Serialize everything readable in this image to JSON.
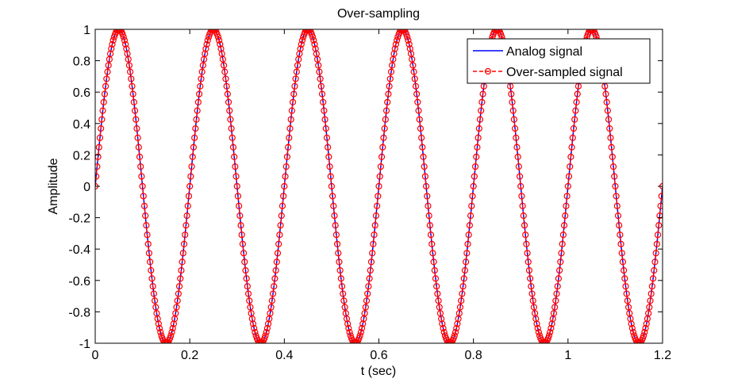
{
  "chart_data": {
    "type": "line",
    "title": "Over-sampling",
    "xlabel": "t (sec)",
    "ylabel": "Amplitude",
    "xlim": [
      0,
      1.2
    ],
    "ylim": [
      -1,
      1
    ],
    "x_ticks": [
      "0",
      "0.2",
      "0.4",
      "0.6",
      "0.8",
      "1",
      "1.2"
    ],
    "y_ticks": [
      "1",
      "0.8",
      "0.6",
      "0.4",
      "0.2",
      "0",
      "-0.2",
      "-0.4",
      "-0.6",
      "-0.8",
      "-1"
    ],
    "grid": false,
    "legend_position": "top-right",
    "series": [
      {
        "name": "Analog signal",
        "color": "#0000ff",
        "style": "solid line",
        "function": "sin(2*pi*5*t)",
        "frequency_hz": 5,
        "amplitude": 1,
        "t_start": 0,
        "t_end": 1.2
      },
      {
        "name": "Over-sampled signal",
        "color": "#ff0000",
        "style": "dashed line with circle markers",
        "function": "sin(2*pi*5*t)",
        "frequency_hz": 5,
        "amplitude": 1,
        "t_start": 0,
        "t_end": 1.2,
        "sample_interval_sec": 0.002
      }
    ]
  }
}
